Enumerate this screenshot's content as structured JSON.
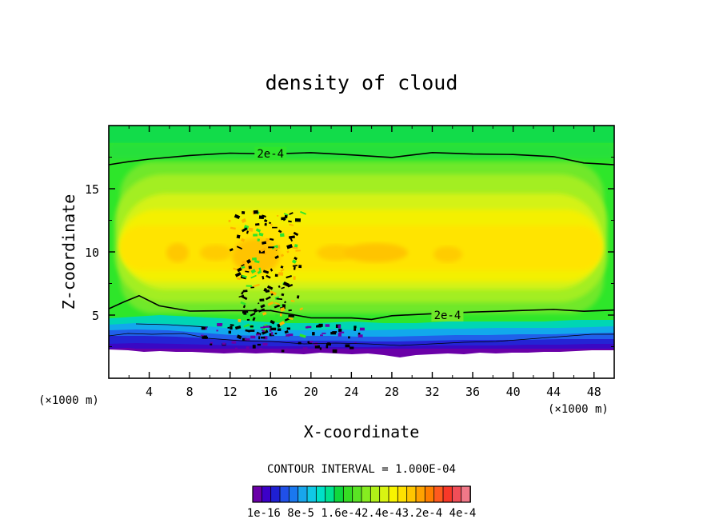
{
  "chart_data": {
    "type": "heatmap",
    "title": "density of cloud",
    "xlabel": "X-coordinate",
    "ylabel": "Z-coordinate",
    "x_unit_left": "(×1000 m)",
    "x_unit_right": "(×1000 m)",
    "xlim": [
      0,
      50
    ],
    "ylim": [
      0,
      20
    ],
    "x_ticks": [
      "4",
      "8",
      "12",
      "16",
      "20",
      "24",
      "28",
      "32",
      "36",
      "40",
      "44",
      "48"
    ],
    "x_tick_values": [
      4,
      8,
      12,
      16,
      20,
      24,
      28,
      32,
      36,
      40,
      44,
      48
    ],
    "y_ticks": [
      "5",
      "10",
      "15"
    ],
    "y_tick_values": [
      5,
      10,
      15
    ],
    "contour_interval_label": "CONTOUR INTERVAL = 1.000E-04",
    "contour_label_top": "2e-4",
    "contour_label_bottom": "2e-4",
    "contour_label_top_position": [
      16,
      17.8
    ],
    "contour_label_bottom_position": [
      33.5,
      5.0
    ],
    "contour_2e4_upper_z": [
      [
        0,
        16.9
      ],
      [
        2,
        17.1
      ],
      [
        4,
        17.4
      ],
      [
        8,
        17.6
      ],
      [
        12,
        17.8
      ],
      [
        16,
        17.8
      ],
      [
        20,
        17.8
      ],
      [
        24,
        17.7
      ],
      [
        28,
        17.5
      ],
      [
        32,
        17.8
      ],
      [
        36,
        17.8
      ],
      [
        40,
        17.7
      ],
      [
        44,
        17.5
      ],
      [
        47,
        17.1
      ],
      [
        50,
        16.9
      ]
    ],
    "contour_2e4_lower_z": [
      [
        0,
        5.5
      ],
      [
        1.5,
        6.0
      ],
      [
        3,
        6.6
      ],
      [
        5,
        5.7
      ],
      [
        8,
        5.3
      ],
      [
        12,
        5.4
      ],
      [
        16,
        5.3
      ],
      [
        20,
        4.8
      ],
      [
        24,
        4.8
      ],
      [
        26,
        4.6
      ],
      [
        28,
        5.0
      ],
      [
        32,
        5.1
      ],
      [
        36,
        5.2
      ],
      [
        40,
        5.4
      ],
      [
        44,
        5.4
      ],
      [
        47,
        5.3
      ],
      [
        50,
        5.4
      ]
    ],
    "colorbar_labels": [
      "1e-16",
      "8e-5",
      "1.6e-4",
      "2.4e-4",
      "3.2e-4",
      "4e-4"
    ],
    "colorbar_label_text": "1e-16 8e-5 1.6e-42.4e-43.2e-4 4e-4",
    "colorbar_colors": [
      "#6a00a8",
      "#3c00c8",
      "#1f1fd2",
      "#2050e8",
      "#1a78f0",
      "#18a6ec",
      "#10c8e6",
      "#00e0c8",
      "#00e290",
      "#10d83c",
      "#36dc24",
      "#5ae424",
      "#86ec20",
      "#b0f018",
      "#d8f412",
      "#f8f400",
      "#ffe100",
      "#ffc600",
      "#ffa200",
      "#ff7e00",
      "#ff5a1e",
      "#f83828",
      "#f04e58",
      "#f07888"
    ],
    "grid": false,
    "legend": "bottom-center"
  }
}
